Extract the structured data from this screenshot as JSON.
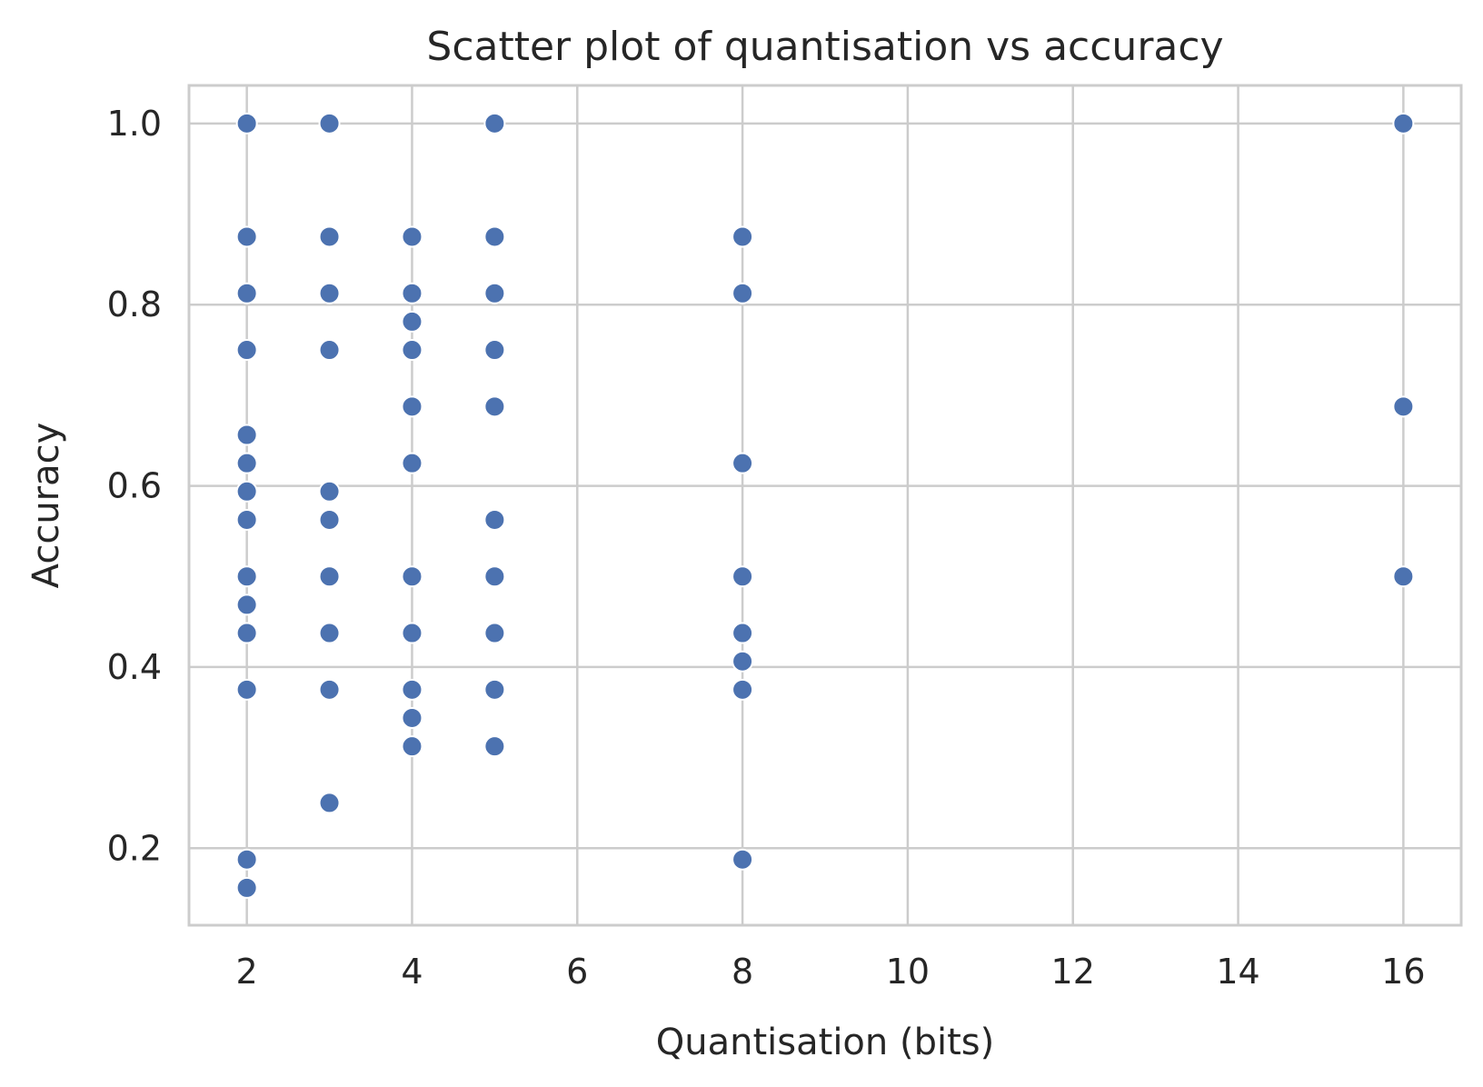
{
  "chart_data": {
    "type": "scatter",
    "title": "Scatter plot of quantisation vs accuracy",
    "xlabel": "Quantisation (bits)",
    "ylabel": "Accuracy",
    "xlim": [
      1.3,
      16.7
    ],
    "ylim": [
      0.115,
      1.042
    ],
    "xticks": [
      2,
      4,
      6,
      8,
      10,
      12,
      14,
      16
    ],
    "yticks": [
      0.2,
      0.4,
      0.6,
      0.8,
      1.0
    ],
    "xtick_labels": [
      "2",
      "4",
      "6",
      "8",
      "10",
      "12",
      "14",
      "16"
    ],
    "ytick_labels": [
      "0.2",
      "0.4",
      "0.6",
      "0.8",
      "1.0"
    ],
    "grid": true,
    "marker_color": "#4c72b0",
    "points": [
      {
        "x": 2,
        "y": 1.0
      },
      {
        "x": 2,
        "y": 0.875
      },
      {
        "x": 2,
        "y": 0.8125
      },
      {
        "x": 2,
        "y": 0.75
      },
      {
        "x": 2,
        "y": 0.65625
      },
      {
        "x": 2,
        "y": 0.625
      },
      {
        "x": 2,
        "y": 0.59375
      },
      {
        "x": 2,
        "y": 0.5625
      },
      {
        "x": 2,
        "y": 0.5
      },
      {
        "x": 2,
        "y": 0.46875
      },
      {
        "x": 2,
        "y": 0.4375
      },
      {
        "x": 2,
        "y": 0.375
      },
      {
        "x": 2,
        "y": 0.1875
      },
      {
        "x": 2,
        "y": 0.15625
      },
      {
        "x": 3,
        "y": 1.0
      },
      {
        "x": 3,
        "y": 0.875
      },
      {
        "x": 3,
        "y": 0.8125
      },
      {
        "x": 3,
        "y": 0.75
      },
      {
        "x": 3,
        "y": 0.59375
      },
      {
        "x": 3,
        "y": 0.5625
      },
      {
        "x": 3,
        "y": 0.5
      },
      {
        "x": 3,
        "y": 0.4375
      },
      {
        "x": 3,
        "y": 0.375
      },
      {
        "x": 3,
        "y": 0.25
      },
      {
        "x": 4,
        "y": 0.875
      },
      {
        "x": 4,
        "y": 0.8125
      },
      {
        "x": 4,
        "y": 0.78125
      },
      {
        "x": 4,
        "y": 0.75
      },
      {
        "x": 4,
        "y": 0.6875
      },
      {
        "x": 4,
        "y": 0.625
      },
      {
        "x": 4,
        "y": 0.5
      },
      {
        "x": 4,
        "y": 0.4375
      },
      {
        "x": 4,
        "y": 0.375
      },
      {
        "x": 4,
        "y": 0.34375
      },
      {
        "x": 4,
        "y": 0.3125
      },
      {
        "x": 5,
        "y": 1.0
      },
      {
        "x": 5,
        "y": 0.875
      },
      {
        "x": 5,
        "y": 0.8125
      },
      {
        "x": 5,
        "y": 0.75
      },
      {
        "x": 5,
        "y": 0.6875
      },
      {
        "x": 5,
        "y": 0.5625
      },
      {
        "x": 5,
        "y": 0.5
      },
      {
        "x": 5,
        "y": 0.4375
      },
      {
        "x": 5,
        "y": 0.375
      },
      {
        "x": 5,
        "y": 0.3125
      },
      {
        "x": 8,
        "y": 0.875
      },
      {
        "x": 8,
        "y": 0.8125
      },
      {
        "x": 8,
        "y": 0.625
      },
      {
        "x": 8,
        "y": 0.5
      },
      {
        "x": 8,
        "y": 0.4375
      },
      {
        "x": 8,
        "y": 0.40625
      },
      {
        "x": 8,
        "y": 0.375
      },
      {
        "x": 8,
        "y": 0.1875
      },
      {
        "x": 16,
        "y": 1.0
      },
      {
        "x": 16,
        "y": 0.6875
      },
      {
        "x": 16,
        "y": 0.5
      }
    ]
  }
}
